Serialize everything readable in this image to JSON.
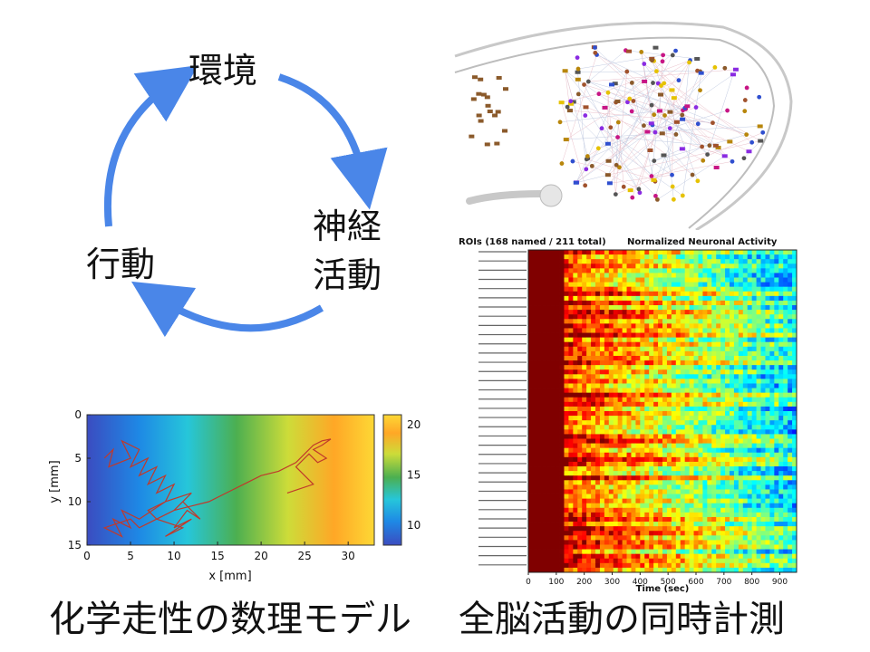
{
  "cycle": {
    "nodes": {
      "environment": "環境",
      "neural_line1": "神経",
      "neural_line2": "活動",
      "behavior": "行動"
    },
    "arrow_color": "#4a86e8"
  },
  "connectome": {},
  "heatmap": {
    "title_left": "ROIs (168 named / 211 total)",
    "title_right": "Normalized Neuronal Activity",
    "xlabel": "Time (sec)",
    "xticks": [
      "0",
      "100",
      "200",
      "300",
      "400",
      "500",
      "600",
      "700",
      "800",
      "900"
    ]
  },
  "chemotaxis": {
    "xlabel": "x [mm]",
    "ylabel": "y [mm]",
    "xticks": [
      "0",
      "5",
      "10",
      "15",
      "20",
      "25",
      "30"
    ],
    "yticks": [
      "0",
      "5",
      "10",
      "15"
    ],
    "colorbar_ticks": [
      "20",
      "15",
      "10"
    ],
    "trajectory_color": "#c0392b"
  },
  "captions": {
    "left": "化学走性の数理モデル",
    "right": "全脳活動の同時計測"
  },
  "chart_data": [
    {
      "type": "line",
      "title": "",
      "xlabel": "x [mm]",
      "ylabel": "y [mm]",
      "xlim": [
        0,
        33
      ],
      "ylim": [
        15,
        0
      ],
      "colorbar": {
        "range": [
          8,
          21
        ],
        "ticks": [
          10,
          15,
          20
        ]
      },
      "series": [
        {
          "x": [
            2,
            3,
            2.5,
            5,
            4,
            6,
            5,
            7,
            6,
            8,
            7,
            9,
            8,
            10,
            9,
            12,
            10,
            11,
            13,
            11.5,
            10,
            12,
            9,
            11,
            8,
            7,
            9,
            6,
            4,
            5,
            3,
            4,
            2,
            5,
            6,
            8,
            10,
            12,
            14,
            16,
            18,
            20,
            22,
            24,
            25,
            26,
            27,
            28,
            27,
            26,
            27.5,
            26.5,
            25.5,
            24,
            25,
            26,
            23
          ],
          "y": [
            5,
            4,
            6,
            5,
            3,
            4,
            6,
            5,
            7,
            6,
            8,
            7,
            9,
            8,
            10,
            9,
            11,
            10,
            12,
            11,
            13,
            12,
            14,
            13,
            12,
            11,
            10,
            12,
            11,
            13,
            12,
            14,
            13,
            12,
            13,
            12,
            11,
            10.5,
            10,
            9,
            8,
            7,
            6.5,
            5.5,
            4.5,
            3.5,
            3,
            2.8,
            3.5,
            4,
            5,
            5.5,
            4.5,
            6,
            7,
            8,
            9
          ]
        }
      ]
    },
    {
      "type": "heatmap",
      "title": "Normalized Neuronal Activity",
      "xlabel": "Time (sec)",
      "xlim": [
        0,
        960
      ],
      "rows": 211,
      "named_rows": 168
    }
  ]
}
